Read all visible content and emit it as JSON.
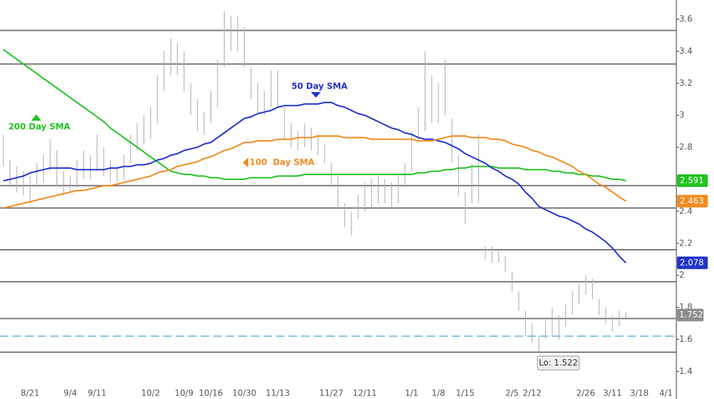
{
  "chart_data": {
    "type": "ohlc",
    "categories": [
      null,
      null,
      null,
      null,
      "8/21",
      null,
      null,
      null,
      null,
      null,
      "9/4",
      null,
      null,
      null,
      "9/11",
      null,
      null,
      null,
      null,
      null,
      null,
      null,
      "10/2",
      null,
      null,
      null,
      null,
      "10/9",
      null,
      null,
      null,
      "10/16",
      null,
      null,
      null,
      null,
      "10/30",
      null,
      null,
      null,
      null,
      "11/13",
      null,
      null,
      null,
      null,
      null,
      null,
      null,
      "11/27",
      null,
      null,
      null,
      null,
      "12/11",
      null,
      null,
      null,
      null,
      null,
      null,
      "1/1",
      null,
      null,
      null,
      "1/8",
      null,
      null,
      null,
      "1/15",
      null,
      null,
      null,
      null,
      null,
      null,
      "2/5",
      null,
      null,
      "2/12",
      null,
      null,
      null,
      null,
      null,
      null,
      null,
      "2/26",
      null,
      null,
      null,
      "3/11",
      null,
      null,
      null,
      "3/18",
      null,
      null,
      null,
      "4/1"
    ],
    "bars": {
      "color": "#b4b4b4",
      "high": [
        2.88,
        2.72,
        2.68,
        2.65,
        2.62,
        2.7,
        2.75,
        2.85,
        2.78,
        2.65,
        2.62,
        2.72,
        2.78,
        2.75,
        2.88,
        2.8,
        2.72,
        2.68,
        2.75,
        2.88,
        2.95,
        3.0,
        3.05,
        3.25,
        3.4,
        3.48,
        3.45,
        3.4,
        3.2,
        3.1,
        3.02,
        3.15,
        3.35,
        3.65,
        3.62,
        3.62,
        3.55,
        3.3,
        3.2,
        3.15,
        3.28,
        3.28,
        3.05,
        2.95,
        2.9,
        2.95,
        2.92,
        2.88,
        2.82,
        2.7,
        2.62,
        2.45,
        2.4,
        2.5,
        2.58,
        2.6,
        2.62,
        2.6,
        2.58,
        2.62,
        2.7,
        2.9,
        3.05,
        3.4,
        3.25,
        3.2,
        3.35,
        2.98,
        2.75,
        2.52,
        2.7,
        2.88,
        2.18,
        2.18,
        2.15,
        2.12,
        2.02,
        1.9,
        1.78,
        1.7,
        1.62,
        1.72,
        1.8,
        1.75,
        1.82,
        1.9,
        1.95,
        2.0,
        1.98,
        1.85,
        1.8,
        1.75,
        1.78,
        1.77,
        null,
        null,
        null,
        null,
        null,
        null
      ],
      "low": [
        2.68,
        2.55,
        2.52,
        2.5,
        2.45,
        2.55,
        2.58,
        2.65,
        2.55,
        2.5,
        2.52,
        2.55,
        2.6,
        2.6,
        2.65,
        2.62,
        2.58,
        2.58,
        2.6,
        2.7,
        2.78,
        2.82,
        2.85,
        2.95,
        3.15,
        3.25,
        3.25,
        3.15,
        3.0,
        2.9,
        2.88,
        2.95,
        3.05,
        3.3,
        3.4,
        3.4,
        3.3,
        3.1,
        3.0,
        3.0,
        3.05,
        3.05,
        2.85,
        2.8,
        2.78,
        2.8,
        2.78,
        2.75,
        2.7,
        2.55,
        2.42,
        2.3,
        2.25,
        2.35,
        2.4,
        2.42,
        2.45,
        2.45,
        2.42,
        2.45,
        2.55,
        2.65,
        2.85,
        2.9,
        2.95,
        2.95,
        3.0,
        2.7,
        2.5,
        2.32,
        2.45,
        2.45,
        2.1,
        2.08,
        2.08,
        2.02,
        1.9,
        1.78,
        1.62,
        1.58,
        1.522,
        1.6,
        1.62,
        1.6,
        1.68,
        1.75,
        1.82,
        1.88,
        1.85,
        1.75,
        1.7,
        1.65,
        1.68,
        1.72,
        null,
        null,
        null,
        null,
        null,
        null
      ]
    },
    "series": [
      {
        "name": "200 Day SMA",
        "color": "#1fc31f",
        "values": [
          3.41,
          3.38,
          3.35,
          3.32,
          3.29,
          3.26,
          3.23,
          3.2,
          3.17,
          3.14,
          3.11,
          3.08,
          3.05,
          3.02,
          2.99,
          2.96,
          2.92,
          2.89,
          2.86,
          2.83,
          2.8,
          2.77,
          2.74,
          2.71,
          2.68,
          2.65,
          2.64,
          2.63,
          2.63,
          2.62,
          2.62,
          2.61,
          2.61,
          2.6,
          2.6,
          2.6,
          2.6,
          2.61,
          2.61,
          2.61,
          2.61,
          2.62,
          2.62,
          2.62,
          2.62,
          2.63,
          2.63,
          2.63,
          2.63,
          2.63,
          2.63,
          2.63,
          2.63,
          2.63,
          2.63,
          2.63,
          2.63,
          2.63,
          2.63,
          2.63,
          2.63,
          2.63,
          2.64,
          2.64,
          2.65,
          2.65,
          2.66,
          2.66,
          2.67,
          2.67,
          2.68,
          2.68,
          2.68,
          2.68,
          2.67,
          2.67,
          2.67,
          2.67,
          2.66,
          2.66,
          2.66,
          2.66,
          2.65,
          2.65,
          2.64,
          2.64,
          2.63,
          2.63,
          2.62,
          2.62,
          2.61,
          2.6,
          2.6,
          2.591,
          null,
          null,
          null,
          null,
          null,
          null
        ]
      },
      {
        "name": "50 Day SMA",
        "color": "#2233cc",
        "values": [
          2.59,
          2.6,
          2.61,
          2.62,
          2.64,
          2.65,
          2.66,
          2.67,
          2.67,
          2.67,
          2.67,
          2.66,
          2.66,
          2.66,
          2.66,
          2.66,
          2.67,
          2.67,
          2.68,
          2.68,
          2.69,
          2.69,
          2.7,
          2.72,
          2.73,
          2.75,
          2.76,
          2.78,
          2.79,
          2.8,
          2.82,
          2.83,
          2.86,
          2.89,
          2.92,
          2.95,
          2.98,
          2.99,
          3.01,
          3.02,
          3.03,
          3.05,
          3.06,
          3.06,
          3.06,
          3.07,
          3.07,
          3.07,
          3.08,
          3.08,
          3.06,
          3.05,
          3.03,
          3.01,
          3.0,
          2.98,
          2.96,
          2.94,
          2.92,
          2.91,
          2.89,
          2.88,
          2.86,
          2.85,
          2.85,
          2.84,
          2.83,
          2.81,
          2.79,
          2.76,
          2.74,
          2.72,
          2.7,
          2.67,
          2.65,
          2.62,
          2.6,
          2.57,
          2.52,
          2.48,
          2.43,
          2.41,
          2.39,
          2.37,
          2.36,
          2.34,
          2.32,
          2.29,
          2.27,
          2.24,
          2.21,
          2.17,
          2.12,
          2.078,
          null,
          null,
          null,
          null,
          null,
          null
        ]
      },
      {
        "name": "100  Day SMA",
        "color": "#f28a1e",
        "values": [
          2.42,
          2.43,
          2.44,
          2.45,
          2.46,
          2.47,
          2.48,
          2.49,
          2.5,
          2.51,
          2.52,
          2.53,
          2.53,
          2.54,
          2.55,
          2.56,
          2.56,
          2.57,
          2.58,
          2.59,
          2.6,
          2.61,
          2.62,
          2.64,
          2.65,
          2.66,
          2.68,
          2.69,
          2.7,
          2.71,
          2.73,
          2.74,
          2.76,
          2.78,
          2.79,
          2.81,
          2.83,
          2.83,
          2.84,
          2.84,
          2.84,
          2.85,
          2.85,
          2.85,
          2.86,
          2.86,
          2.86,
          2.87,
          2.87,
          2.87,
          2.87,
          2.86,
          2.86,
          2.86,
          2.86,
          2.85,
          2.85,
          2.85,
          2.85,
          2.85,
          2.85,
          2.85,
          2.84,
          2.84,
          2.84,
          2.85,
          2.86,
          2.87,
          2.87,
          2.87,
          2.86,
          2.86,
          2.86,
          2.85,
          2.85,
          2.84,
          2.82,
          2.81,
          2.8,
          2.78,
          2.77,
          2.75,
          2.74,
          2.72,
          2.7,
          2.68,
          2.65,
          2.63,
          2.6,
          2.57,
          2.55,
          2.52,
          2.49,
          2.463,
          null,
          null,
          null,
          null,
          null,
          null
        ]
      }
    ],
    "last_price": 1.752,
    "low_label": "Lo: 1.522",
    "levels": [
      3.53,
      3.32,
      2.56,
      2.42,
      2.16,
      1.96,
      1.73,
      1.52
    ],
    "level_color": "#7a7a7a",
    "dashed_level": 1.62,
    "dashed_color": "#7fc4ea",
    "ylim": [
      1.31,
      3.72
    ],
    "yticks": [
      3.6,
      3.4,
      3.2,
      3,
      2.8,
      2.6,
      2.4,
      2.2,
      2,
      1.8,
      1.6,
      1.4
    ]
  }
}
